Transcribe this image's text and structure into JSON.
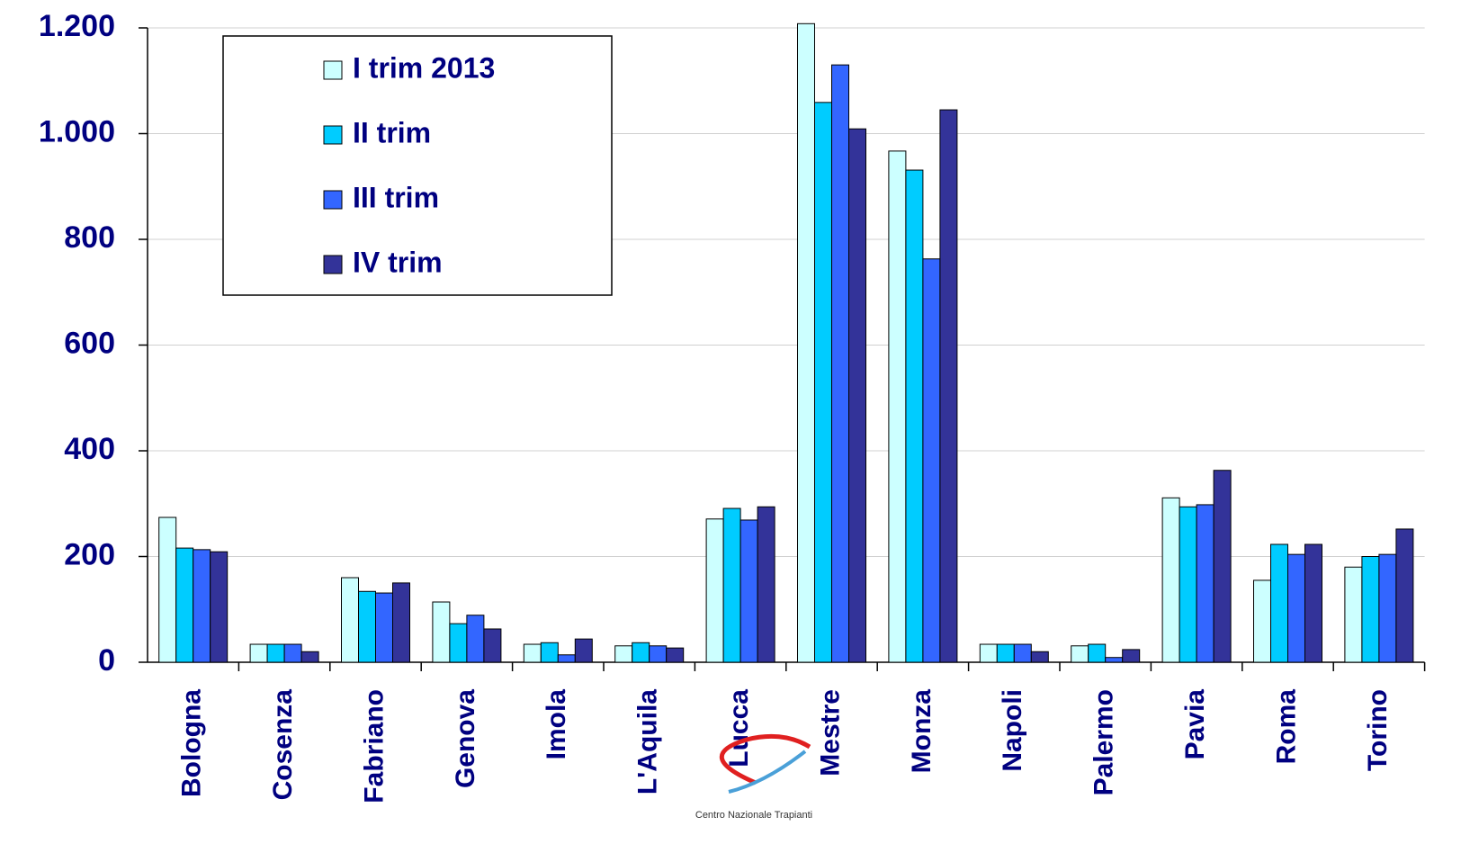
{
  "chart_data": {
    "type": "bar",
    "categories": [
      "Bologna",
      "Cosenza",
      "Fabriano",
      "Genova",
      "Imola",
      "L'Aquila",
      "Lucca",
      "Mestre",
      "Monza",
      "Napoli",
      "Palermo",
      "Pavia",
      "Roma",
      "Torino"
    ],
    "series": [
      {
        "name": "I trim 2013",
        "color": "#ccffff",
        "values": [
          274,
          34,
          160,
          114,
          34,
          31,
          271,
          1208,
          967,
          34,
          31,
          311,
          155,
          180
        ]
      },
      {
        "name": "II trim",
        "color": "#00ccff",
        "values": [
          216,
          34,
          134,
          73,
          37,
          37,
          291,
          1059,
          931,
          34,
          34,
          294,
          223,
          200
        ]
      },
      {
        "name": "III trim",
        "color": "#3366ff",
        "values": [
          213,
          34,
          131,
          89,
          14,
          31,
          269,
          1130,
          763,
          34,
          9,
          298,
          204,
          204
        ]
      },
      {
        "name": "IV trim",
        "color": "#333399",
        "values": [
          209,
          20,
          150,
          63,
          44,
          27,
          294,
          1009,
          1045,
          20,
          24,
          363,
          223,
          252
        ]
      }
    ],
    "ylim": [
      0,
      1200
    ],
    "yticks": [
      0,
      200,
      400,
      600,
      800,
      {
        "value": 1000,
        "label": "1.000"
      },
      {
        "value": 1200,
        "label": "1.200"
      }
    ],
    "grid": true,
    "legend": "upper-left",
    "logo_text": "Centro Nazionale Trapianti"
  }
}
